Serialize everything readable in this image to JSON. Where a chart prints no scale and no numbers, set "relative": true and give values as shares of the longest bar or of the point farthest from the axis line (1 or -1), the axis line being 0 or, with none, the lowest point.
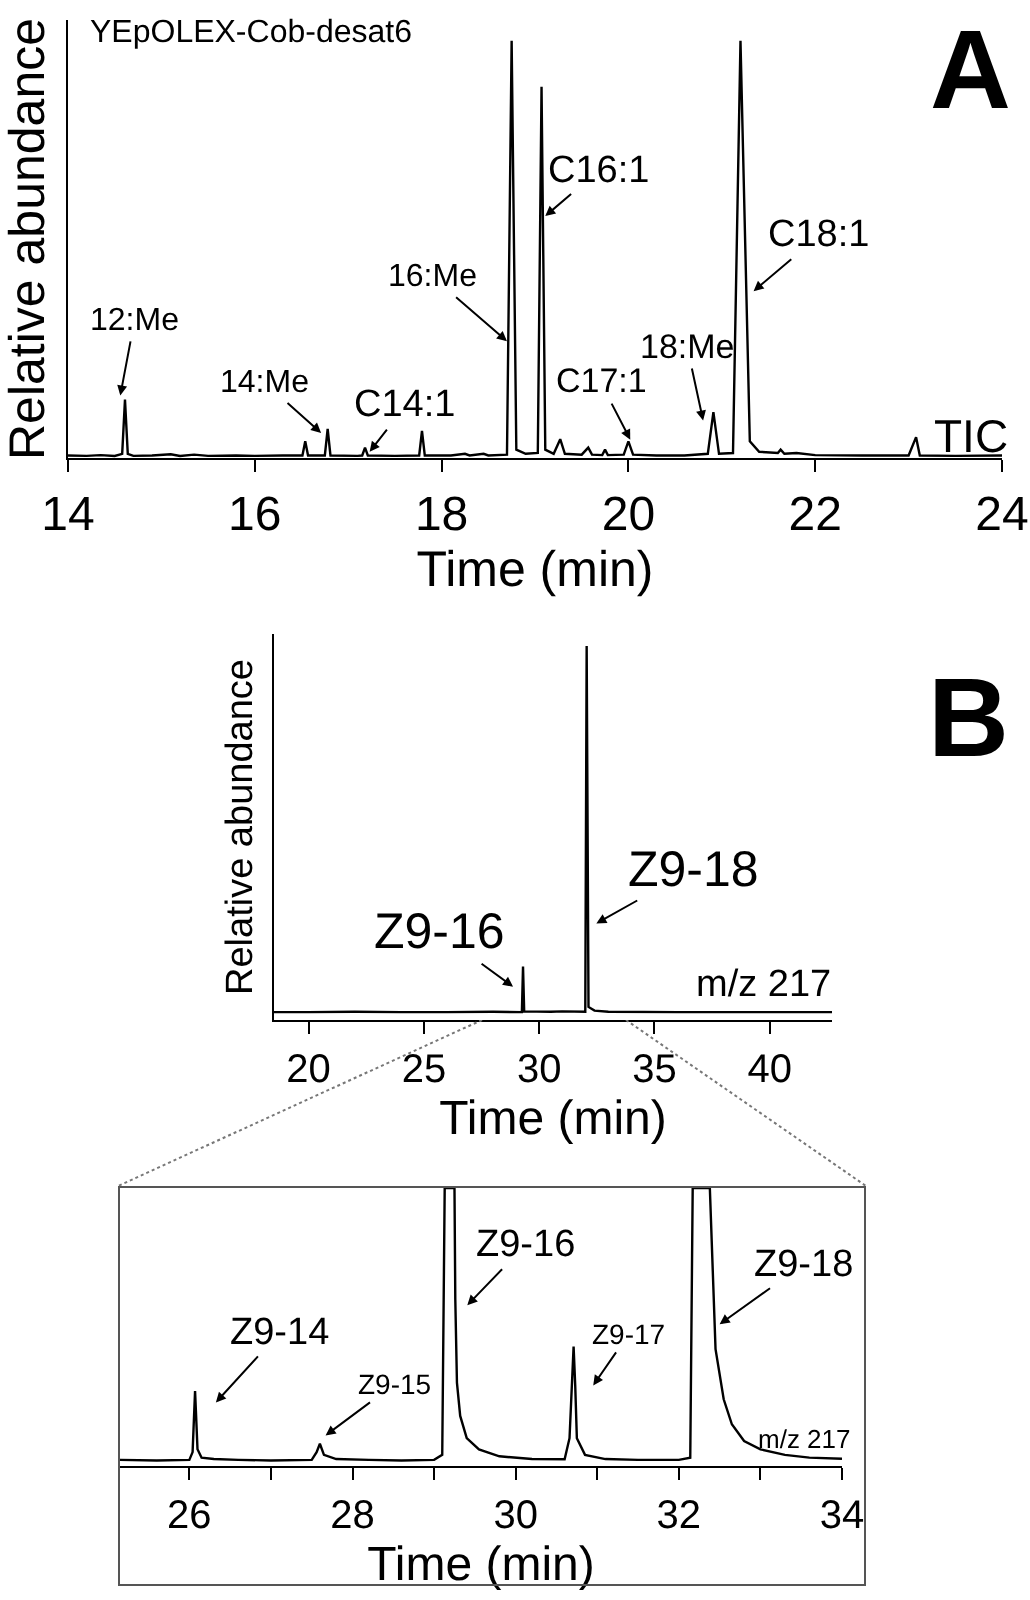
{
  "chart_data": [
    {
      "type": "line",
      "relative": true,
      "xlabel": "Time (min)",
      "ylabel": "Relative abundance",
      "color": "#000000",
      "xlim": [
        14,
        24
      ],
      "xticks": [
        14,
        16,
        18,
        20,
        22,
        24
      ],
      "x": [
        14.0,
        14.2,
        14.35,
        14.5,
        14.58,
        14.61,
        14.64,
        14.7,
        14.9,
        15.1,
        15.2,
        15.35,
        15.5,
        15.8,
        16.0,
        16.3,
        16.51,
        16.54,
        16.57,
        16.75,
        16.78,
        16.81,
        17.1,
        17.15,
        17.18,
        17.21,
        17.5,
        17.76,
        17.79,
        17.82,
        18.1,
        18.25,
        18.3,
        18.45,
        18.5,
        18.7,
        18.75,
        18.8,
        18.9,
        19.03,
        19.07,
        19.11,
        19.2,
        19.27,
        19.32,
        19.5,
        19.57,
        19.61,
        19.72,
        19.75,
        19.78,
        19.95,
        20.0,
        20.05,
        20.3,
        20.6,
        20.85,
        20.91,
        20.97,
        21.12,
        21.2,
        21.3,
        21.4,
        21.6,
        21.63,
        21.67,
        21.8,
        22.0,
        22.5,
        23.0,
        23.08,
        23.12,
        23.5,
        24.0
      ],
      "values": [
        0.006,
        0.005,
        0.007,
        0.005,
        0.01,
        0.14,
        0.01,
        0.005,
        0.006,
        0.009,
        0.005,
        0.008,
        0.005,
        0.006,
        0.005,
        0.006,
        0.006,
        0.04,
        0.006,
        0.006,
        0.07,
        0.006,
        0.005,
        0.006,
        0.025,
        0.006,
        0.005,
        0.006,
        0.065,
        0.006,
        0.006,
        0.01,
        0.006,
        0.01,
        0.006,
        0.008,
        1,
        0.02,
        0.01,
        0.012,
        0.89,
        0.02,
        0.01,
        0.045,
        0.01,
        0.008,
        0.025,
        0.008,
        0.007,
        0.02,
        0.007,
        0.008,
        0.04,
        0.008,
        0.006,
        0.006,
        0.01,
        0.11,
        0.01,
        0.012,
        1,
        0.04,
        0.015,
        0.012,
        0.02,
        0.01,
        0.012,
        0.007,
        0.006,
        0.006,
        0.05,
        0.006,
        0.005,
        0.006
      ],
      "annotations": [
        "YEpOLEX-Cob-desat6",
        {
          "text": "12:Me",
          "x": 14.56,
          "y": 0.15
        },
        {
          "text": "14:Me",
          "x": 16.71,
          "y": 0.06
        },
        {
          "text": "C14:1",
          "x": 17.23,
          "y": 0.015
        },
        {
          "text": "16:Me",
          "x": 18.7,
          "y": 0.28
        },
        {
          "text": "C16:1",
          "x": 19.11,
          "y": 0.58
        },
        {
          "text": "C17:1",
          "x": 20.02,
          "y": 0.044
        },
        {
          "text": "18:Me",
          "x": 20.8,
          "y": 0.09
        },
        {
          "text": "C18:1",
          "x": 21.34,
          "y": 0.4
        },
        "TIC",
        "A"
      ]
    },
    {
      "type": "line",
      "relative": true,
      "xlabel": "Time (min)",
      "ylabel": "Relative abundance",
      "color": "#000000",
      "xlim": [
        18.5,
        42.7
      ],
      "xticks": [
        20,
        25,
        30,
        35,
        40
      ],
      "x": [
        18.5,
        20,
        22,
        24,
        26,
        28,
        29.25,
        29.3,
        29.35,
        30.5,
        31,
        32.0,
        32.06,
        32.14,
        32.4,
        33,
        36,
        40,
        42.7
      ],
      "values": [
        0.021,
        0.021,
        0.022,
        0.021,
        0.021,
        0.022,
        0.021,
        0.143,
        0.023,
        0.022,
        0.023,
        0.022,
        1,
        0.035,
        0.025,
        0.022,
        0.021,
        0.021,
        0.021
      ],
      "annotations": [
        {
          "text": "Z9-16",
          "x": 28.87,
          "y": 0.089
        },
        {
          "text": "Z9-18",
          "x": 32.48,
          "y": 0.258
        },
        "m/z 217",
        "B"
      ]
    },
    {
      "type": "line",
      "relative": true,
      "xlabel": "Time (min)",
      "color": "#000000",
      "xlim": [
        25.15,
        34
      ],
      "xticks": [
        26,
        {
          "value": 27,
          "label": null
        },
        28,
        {
          "value": 29,
          "label": null
        },
        30,
        {
          "value": 31,
          "label": null
        },
        32,
        {
          "value": 33,
          "label": null
        },
        34
      ],
      "x": [
        25.15,
        25.6,
        26.0,
        26.04,
        26.07,
        26.08,
        26.1,
        26.15,
        26.3,
        26.6,
        27.0,
        27.5,
        27.56,
        27.6,
        27.65,
        27.8,
        28.2,
        28.6,
        29.0,
        29.1,
        29.13,
        29.25,
        29.26,
        29.28,
        29.32,
        29.4,
        29.55,
        29.8,
        30.2,
        30.6,
        30.66,
        30.71,
        30.73,
        30.75,
        30.85,
        31.1,
        31.5,
        32.0,
        32.14,
        32.17,
        32.38,
        32.45,
        32.55,
        32.65,
        32.8,
        33.0,
        33.3,
        33.6,
        34.0
      ],
      "values": [
        0.022,
        0.02,
        0.022,
        0.05,
        0.27,
        0.2,
        0.06,
        0.03,
        0.025,
        0.022,
        0.02,
        0.022,
        0.05,
        0.08,
        0.04,
        0.025,
        0.022,
        0.02,
        0.022,
        0.04,
        1,
        1,
        0.6,
        0.3,
        0.18,
        0.1,
        0.06,
        0.035,
        0.025,
        0.024,
        0.1,
        0.43,
        0.29,
        0.1,
        0.04,
        0.025,
        0.022,
        0.022,
        0.03,
        1,
        1,
        0.42,
        0.24,
        0.15,
        0.09,
        0.06,
        0.04,
        0.03,
        0.026
      ],
      "annotations": [
        {
          "text": "Z9-14",
          "x": 26.08,
          "y": 0.2
        },
        {
          "text": "Z9-15",
          "x": 27.67,
          "y": 0.11
        },
        {
          "text": "Z9-16",
          "x": 29.26,
          "y": 0.6
        },
        {
          "text": "Z9-17",
          "x": 30.73,
          "y": 0.29
        },
        {
          "text": "Z9-18",
          "x": 32.5,
          "y": 0.51
        },
        "m/z 217"
      ]
    }
  ]
}
